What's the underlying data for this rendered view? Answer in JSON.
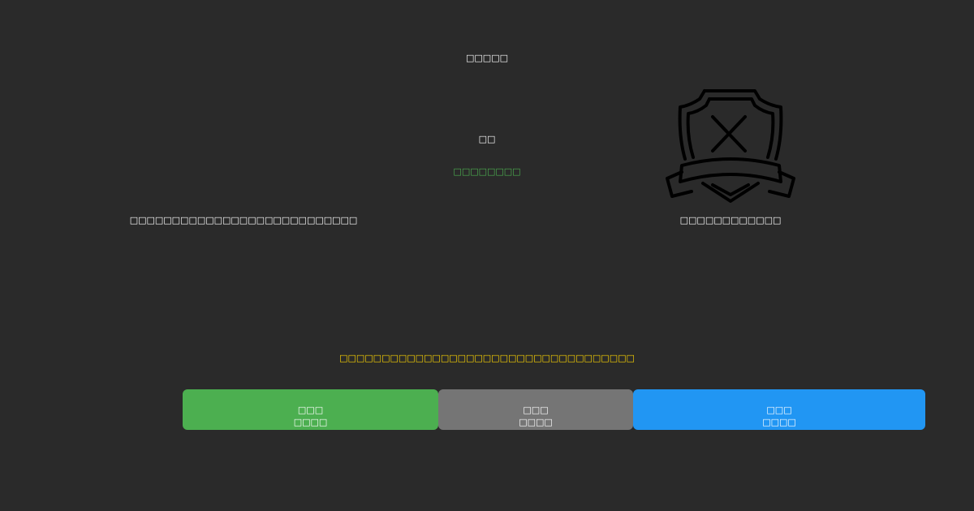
{
  "header": {
    "title": "□□□□□"
  },
  "status": {
    "label": "□□",
    "value": "□□□□□□□□",
    "value_color": "#4caf50"
  },
  "left_message": "□□□□□□□□□□□□□□□□□□□□□□□□□□□",
  "badge": {
    "icon": "shield-x-ribbon-icon",
    "caption": "□□□□□□□□□□□□"
  },
  "warning": {
    "text": "□□□□□□□□□□□□□□□□□□□□□□□□□□□□□□□□□□□",
    "color": "#ffd700"
  },
  "buttons": [
    {
      "line1": "□□□",
      "line2": "□□□□",
      "color": "#4caf50"
    },
    {
      "line1": "□□□",
      "line2": "□□□□",
      "color": "#757575"
    },
    {
      "line1": "□□□",
      "line2": "□□□□",
      "color": "#2196f3"
    }
  ]
}
